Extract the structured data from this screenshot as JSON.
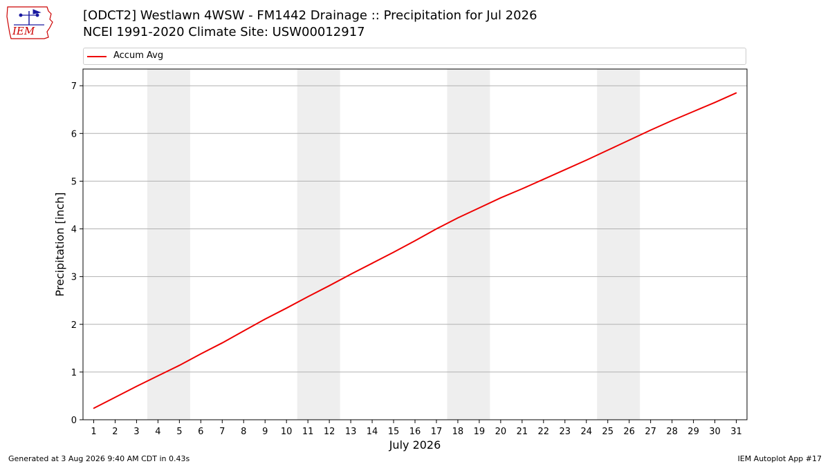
{
  "title_line1": "[ODCT2] Westlawn 4WSW - FM1442 Drainage :: Precipitation for Jul 2026",
  "title_line2": "NCEI 1991-2020 Climate Site: USW00012917",
  "logo_text": "IEM",
  "footer_left": "Generated at 3 Aug 2026 9:40 AM CDT in 0.43s",
  "footer_right": "IEM Autoplot App #17",
  "colors": {
    "line": "#ee0000",
    "weekend_band": "#eeeeee",
    "grid": "#b0b0b0",
    "logo": "#cc0000"
  },
  "chart_data": {
    "type": "line",
    "xlabel": "July 2026",
    "ylabel": "Precipitation [inch]",
    "x": [
      1,
      2,
      3,
      4,
      5,
      6,
      7,
      8,
      9,
      10,
      11,
      12,
      13,
      14,
      15,
      16,
      17,
      18,
      19,
      20,
      21,
      22,
      23,
      24,
      25,
      26,
      27,
      28,
      29,
      30,
      31
    ],
    "xlim": [
      0.5,
      31.5
    ],
    "ylim": [
      0,
      7.35
    ],
    "yticks": [
      0,
      1,
      2,
      3,
      4,
      5,
      6,
      7
    ],
    "grid": "horizontal",
    "legend_position": "top",
    "weekend_bands": [
      [
        3.5,
        5.5
      ],
      [
        10.5,
        12.5
      ],
      [
        17.5,
        19.5
      ],
      [
        24.5,
        26.5
      ]
    ],
    "series": [
      {
        "name": "Accum Avg",
        "values": [
          0.24,
          0.47,
          0.7,
          0.92,
          1.14,
          1.38,
          1.61,
          1.86,
          2.11,
          2.34,
          2.58,
          2.81,
          3.05,
          3.28,
          3.51,
          3.75,
          4.0,
          4.23,
          4.44,
          4.65,
          4.84,
          5.04,
          5.24,
          5.44,
          5.65,
          5.86,
          6.07,
          6.27,
          6.46,
          6.65,
          6.85
        ]
      }
    ]
  }
}
